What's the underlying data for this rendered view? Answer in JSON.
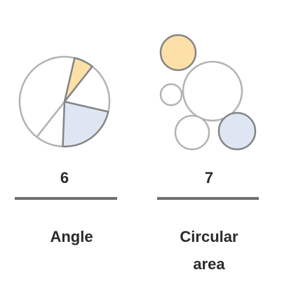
{
  "colors": {
    "outline_light": "#b3b3b3",
    "outline_dark": "#858585",
    "highlight_orange": "#fde0a8",
    "highlight_blue": "#dfe6f3",
    "plain_fill": "#ffffff",
    "rule": "#707070",
    "text": "#2b2b2b"
  },
  "panels": [
    {
      "id": "angle",
      "number": "6",
      "label_lines": [
        "Angle"
      ],
      "glyph": {
        "kind": "pie",
        "slices": [
          {
            "fraction": 0.07,
            "fill": "highlight_orange",
            "stroke": "outline_dark"
          },
          {
            "fraction": 0.18,
            "fill": "plain_fill",
            "stroke": "outline_light"
          },
          {
            "fraction": 0.22,
            "fill": "highlight_blue",
            "stroke": "outline_dark"
          },
          {
            "fraction": 0.1,
            "fill": "plain_fill",
            "stroke": "outline_light"
          },
          {
            "fraction": 0.43,
            "fill": "plain_fill",
            "stroke": "outline_light"
          }
        ]
      }
    },
    {
      "id": "circular-area",
      "number": "7",
      "label_lines": [
        "Circular",
        "area"
      ],
      "glyph": {
        "kind": "bubbles",
        "bubbles": [
          {
            "fill": "highlight_orange",
            "stroke": "outline_dark"
          },
          {
            "fill": "plain_fill",
            "stroke": "outline_light"
          },
          {
            "fill": "plain_fill",
            "stroke": "outline_light"
          },
          {
            "fill": "plain_fill",
            "stroke": "outline_light"
          },
          {
            "fill": "highlight_blue",
            "stroke": "outline_dark"
          }
        ]
      }
    }
  ]
}
